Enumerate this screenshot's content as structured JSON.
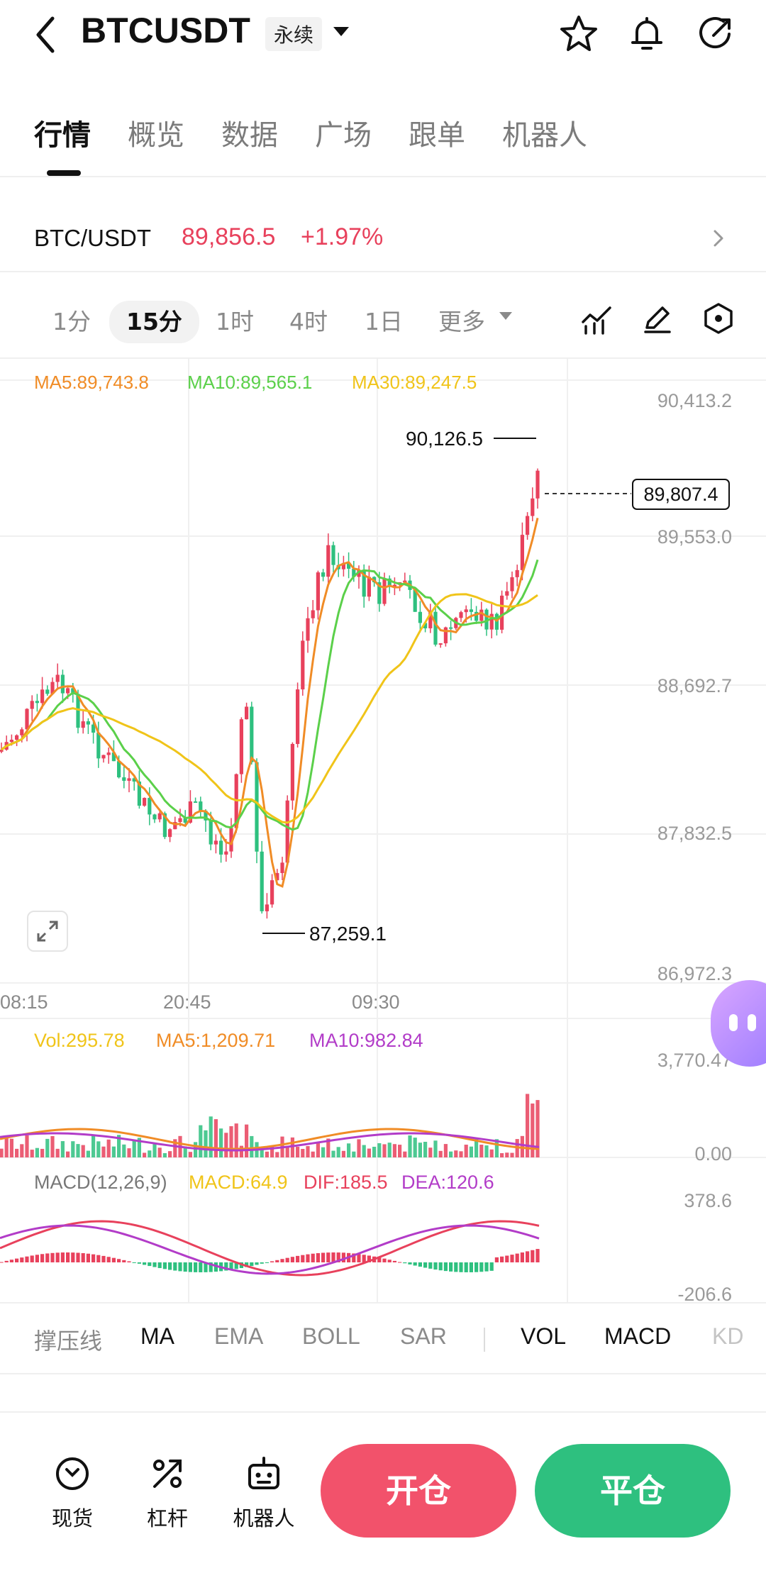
{
  "header": {
    "symbol": "BTCUSDT",
    "contract_type": "永续",
    "icons": [
      "back-icon",
      "star-icon",
      "bell-icon",
      "share-icon"
    ]
  },
  "tabs": [
    {
      "label": "行情",
      "active": true
    },
    {
      "label": "概览"
    },
    {
      "label": "数据"
    },
    {
      "label": "广场"
    },
    {
      "label": "跟单"
    },
    {
      "label": "机器人"
    }
  ],
  "pair": {
    "name": "BTC/USDT",
    "price": "89,856.5",
    "change": "+1.97%"
  },
  "intervals": [
    {
      "label": "1分"
    },
    {
      "label": "15分",
      "active": true
    },
    {
      "label": "1时"
    },
    {
      "label": "4时"
    },
    {
      "label": "1日"
    },
    {
      "label": "更多"
    }
  ],
  "toolbar_icons": [
    "indicator-icon",
    "draw-icon",
    "settings-hexagon-icon"
  ],
  "main_chart": {
    "ma_legend": {
      "ma5": "MA5:89,743.8",
      "ma10": "MA10:89,565.1",
      "ma30": "MA30:89,247.5"
    },
    "price_axis": [
      "90,413.2",
      "89,553.0",
      "88,692.7",
      "87,832.5",
      "86,972.3"
    ],
    "current_price_label": "89,807.4",
    "high_label": "90,126.5",
    "low_label": "87,259.1",
    "time_axis": [
      "08:15",
      "20:45",
      "09:30"
    ],
    "colors": {
      "up": "#e8415c",
      "down": "#2ec07f",
      "ma5": "#f08c26",
      "ma10": "#5bd04a",
      "ma30": "#f0c419"
    }
  },
  "volume_chart": {
    "vol": "Vol:295.78",
    "ma5": "MA5:1,209.71",
    "ma10": "MA10:982.84",
    "axis_top": "3,770.47",
    "axis_bottom": "0.00"
  },
  "macd_chart": {
    "title": "MACD(12,26,9)",
    "macd": "MACD:64.9",
    "dif": "DIF:185.5",
    "dea": "DEA:120.6",
    "axis_top": "378.6",
    "axis_bottom": "-206.6"
  },
  "indicators": [
    {
      "label": "撑压线"
    },
    {
      "label": "MA",
      "on": true
    },
    {
      "label": "EMA"
    },
    {
      "label": "BOLL"
    },
    {
      "label": "SAR"
    },
    {
      "label": "VOL",
      "on": true
    },
    {
      "label": "MACD",
      "on": true
    },
    {
      "label": "KD"
    }
  ],
  "bottom_bar": {
    "spot": "现货",
    "leverage": "杠杆",
    "robot": "机器人",
    "open": "开仓",
    "close": "平仓"
  }
}
